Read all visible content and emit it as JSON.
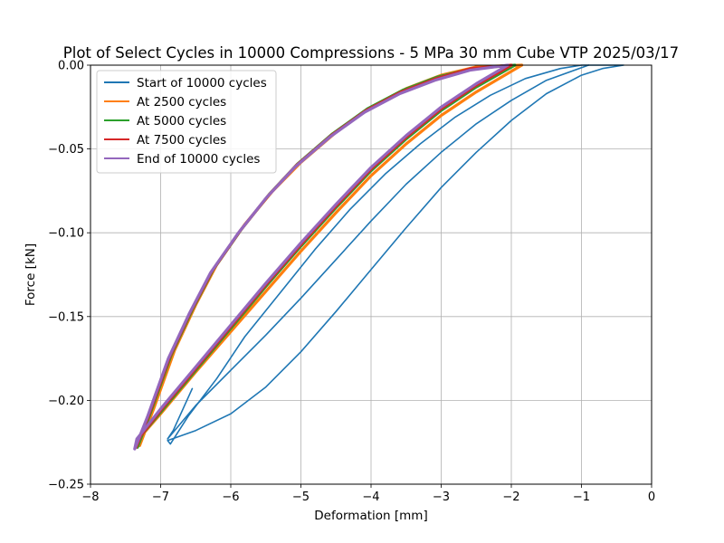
{
  "chart_data": {
    "type": "line",
    "title": "Plot of Select Cycles in 10000 Compressions - 5 MPa 30 mm Cube VTP 2025/03/17",
    "xlabel": "Deformation [mm]",
    "ylabel": "Force [kN]",
    "xlim": [
      -8,
      0
    ],
    "ylim": [
      -0.25,
      0.0
    ],
    "grid": true,
    "legend_position": "upper-left",
    "x_ticks": [
      {
        "value": -8,
        "label": "−8"
      },
      {
        "value": -7,
        "label": "−7"
      },
      {
        "value": -6,
        "label": "−6"
      },
      {
        "value": -5,
        "label": "−5"
      },
      {
        "value": -4,
        "label": "−4"
      },
      {
        "value": -3,
        "label": "−3"
      },
      {
        "value": -2,
        "label": "−2"
      },
      {
        "value": -1,
        "label": "−1"
      },
      {
        "value": 0,
        "label": "0"
      }
    ],
    "y_ticks": [
      {
        "value": 0.0,
        "label": "0.00"
      },
      {
        "value": -0.05,
        "label": "−0.05"
      },
      {
        "value": -0.1,
        "label": "−0.10"
      },
      {
        "value": -0.15,
        "label": "−0.15"
      },
      {
        "value": -0.2,
        "label": "−0.20"
      },
      {
        "value": -0.25,
        "label": "−0.25"
      }
    ],
    "series": [
      {
        "name": "Start of 10000 cycles",
        "color": "#1f77b4",
        "loops": [
          {
            "x": [
              -0.4,
              -0.7,
              -1.0,
              -1.5,
              -2.0,
              -2.5,
              -3.0,
              -3.5,
              -4.0,
              -4.5,
              -5.0,
              -5.5,
              -6.0,
              -6.5,
              -6.9,
              -6.86,
              -6.6,
              -6.2,
              -5.8,
              -5.3,
              -4.8,
              -4.3,
              -3.8,
              -3.3,
              -2.8,
              -2.3,
              -1.8,
              -1.3,
              -1.0,
              -0.9,
              -0.4
            ],
            "y": [
              0.0,
              -0.002,
              -0.006,
              -0.017,
              -0.033,
              -0.052,
              -0.073,
              -0.097,
              -0.122,
              -0.147,
              -0.171,
              -0.192,
              -0.208,
              -0.218,
              -0.224,
              -0.226,
              -0.209,
              -0.187,
              -0.162,
              -0.136,
              -0.11,
              -0.086,
              -0.065,
              -0.047,
              -0.031,
              -0.018,
              -0.008,
              -0.002,
              0.0,
              0.0,
              0.0
            ]
          },
          {
            "x": [
              -0.9,
              -1.5,
              -2.0,
              -2.5,
              -3.0,
              -3.5,
              -4.0,
              -4.5,
              -5.0,
              -5.5,
              -6.0,
              -6.5,
              -6.9,
              -6.82,
              -6.55
            ],
            "y": [
              0.0,
              -0.009,
              -0.021,
              -0.035,
              -0.052,
              -0.071,
              -0.093,
              -0.116,
              -0.139,
              -0.161,
              -0.182,
              -0.203,
              -0.223,
              -0.218,
              -0.193
            ]
          }
        ]
      },
      {
        "name": "At 2500 cycles",
        "color": "#ff7f0e",
        "loops": [
          {
            "x": [
              -1.85,
              -2.5,
              -3.0,
              -3.5,
              -4.0,
              -4.5,
              -5.0,
              -5.5,
              -6.0,
              -6.5,
              -7.0,
              -7.25,
              -7.3,
              -7.1,
              -6.8,
              -6.5,
              -6.2,
              -5.8,
              -5.4,
              -5.0,
              -4.5,
              -4.0,
              -3.5,
              -3.0,
              -2.5,
              -1.85
            ],
            "y": [
              0.0,
              -0.016,
              -0.03,
              -0.047,
              -0.066,
              -0.088,
              -0.111,
              -0.135,
              -0.159,
              -0.183,
              -0.208,
              -0.22,
              -0.227,
              -0.205,
              -0.17,
              -0.143,
              -0.119,
              -0.095,
              -0.075,
              -0.058,
              -0.04,
              -0.025,
              -0.014,
              -0.006,
              -0.001,
              0.0
            ]
          }
        ]
      },
      {
        "name": "At 5000 cycles",
        "color": "#2ca02c",
        "loops": [
          {
            "x": [
              -1.95,
              -2.5,
              -3.0,
              -3.5,
              -4.0,
              -4.5,
              -5.0,
              -5.5,
              -6.0,
              -6.5,
              -7.0,
              -7.3,
              -7.33,
              -7.15,
              -6.85,
              -6.55,
              -6.25,
              -5.85,
              -5.45,
              -5.05,
              -4.55,
              -4.05,
              -3.55,
              -3.05,
              -2.55,
              -1.95
            ],
            "y": [
              0.0,
              -0.013,
              -0.027,
              -0.044,
              -0.063,
              -0.085,
              -0.108,
              -0.132,
              -0.157,
              -0.182,
              -0.207,
              -0.222,
              -0.228,
              -0.208,
              -0.173,
              -0.146,
              -0.122,
              -0.098,
              -0.077,
              -0.059,
              -0.041,
              -0.026,
              -0.015,
              -0.007,
              -0.002,
              0.0
            ]
          }
        ]
      },
      {
        "name": "At 7500 cycles",
        "color": "#d62728",
        "loops": [
          {
            "x": [
              -2.0,
              -2.5,
              -3.0,
              -3.5,
              -4.0,
              -4.5,
              -5.0,
              -5.5,
              -6.0,
              -6.5,
              -7.0,
              -7.32,
              -7.35,
              -7.17,
              -6.87,
              -6.57,
              -6.27,
              -5.87,
              -5.47,
              -5.07,
              -4.57,
              -4.07,
              -3.57,
              -3.07,
              -2.57,
              -2.0
            ],
            "y": [
              0.0,
              -0.012,
              -0.026,
              -0.043,
              -0.062,
              -0.084,
              -0.107,
              -0.131,
              -0.156,
              -0.181,
              -0.206,
              -0.223,
              -0.228,
              -0.209,
              -0.174,
              -0.147,
              -0.123,
              -0.099,
              -0.078,
              -0.06,
              -0.042,
              -0.027,
              -0.016,
              -0.008,
              -0.002,
              0.0
            ]
          }
        ]
      },
      {
        "name": "End of 10000 cycles",
        "color": "#9467bd",
        "loops": [
          {
            "x": [
              -2.05,
              -2.5,
              -3.0,
              -3.5,
              -4.0,
              -4.5,
              -5.0,
              -5.5,
              -6.0,
              -6.5,
              -7.0,
              -7.34,
              -7.37,
              -7.19,
              -6.89,
              -6.59,
              -6.29,
              -5.89,
              -5.49,
              -5.09,
              -4.59,
              -4.09,
              -3.59,
              -3.09,
              -2.59,
              -2.05
            ],
            "y": [
              0.0,
              -0.011,
              -0.025,
              -0.042,
              -0.061,
              -0.083,
              -0.106,
              -0.13,
              -0.155,
              -0.18,
              -0.205,
              -0.223,
              -0.229,
              -0.21,
              -0.175,
              -0.148,
              -0.124,
              -0.1,
              -0.079,
              -0.061,
              -0.043,
              -0.028,
              -0.017,
              -0.009,
              -0.003,
              0.0
            ]
          }
        ]
      }
    ]
  }
}
